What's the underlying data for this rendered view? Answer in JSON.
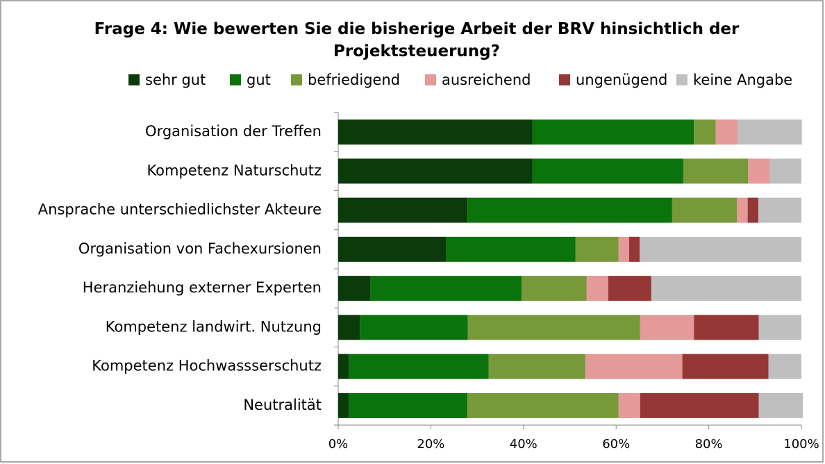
{
  "chart_data": {
    "type": "stacked-bar-horizontal",
    "title": "Frage 4: Wie bewerten Sie die bisherige Arbeit der BRV hinsichtlich der Projektsteuerung?",
    "categories": [
      "Organisation der Treffen",
      "Kompetenz Naturschutz",
      "Ansprache unterschiedlichster Akteure",
      "Organisation von Fachexursionen",
      "Heranziehung externer Experten",
      "Kompetenz landwirt. Nutzung",
      "Kompetenz  Hochwassserschutz",
      "Neutralität"
    ],
    "series": [
      {
        "name": "sehr gut",
        "color": "#0b3b0b",
        "values": [
          41.9,
          41.9,
          27.9,
          23.3,
          7.0,
          4.7,
          2.3,
          2.3
        ]
      },
      {
        "name": "gut",
        "color": "#0b730b",
        "values": [
          34.9,
          32.6,
          44.2,
          27.9,
          32.6,
          23.3,
          30.2,
          25.6
        ]
      },
      {
        "name": "befriedigend",
        "color": "#77993a",
        "values": [
          4.7,
          14.0,
          14.0,
          9.3,
          14.0,
          37.2,
          20.9,
          32.6
        ]
      },
      {
        "name": "ausreichend",
        "color": "#e39a99",
        "values": [
          4.7,
          4.7,
          2.3,
          2.3,
          4.7,
          11.6,
          20.9,
          4.7
        ]
      },
      {
        "name": "ungenügend",
        "color": "#953735",
        "values": [
          0,
          0,
          2.3,
          2.3,
          9.3,
          14.0,
          18.6,
          25.6
        ]
      },
      {
        "name": "keine Angabe",
        "color": "#bfbfbf",
        "values": [
          13.9,
          6.8,
          9.3,
          34.9,
          32.4,
          9.2,
          7.1,
          9.5
        ]
      }
    ],
    "xlim": [
      0,
      100
    ],
    "xticks": [
      {
        "value": 0,
        "label": "0%"
      },
      {
        "value": 20,
        "label": "20%"
      },
      {
        "value": 40,
        "label": "40%"
      },
      {
        "value": 60,
        "label": "60%"
      },
      {
        "value": 80,
        "label": "80%"
      },
      {
        "value": 100,
        "label": "100%"
      }
    ],
    "legend": "top",
    "grid": false
  }
}
